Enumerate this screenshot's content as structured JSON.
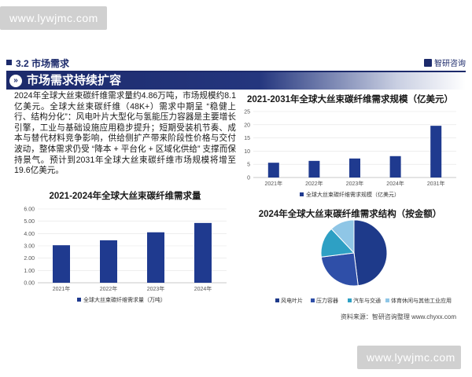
{
  "watermark": {
    "text": "www.lywjmc.com"
  },
  "section": {
    "number_title": "3.2 市场需求",
    "brand": "智研咨询"
  },
  "banner": {
    "title": "市场需求持续扩容"
  },
  "paragraph": "2024年全球大丝束碳纤维需求量约4.86万吨，市场规模约8.1亿美元。全球大丝束碳纤维（48K+）需求中期呈 “稳健上行、结构分化”：风电叶片大型化与氢能压力容器是主要增长引擎，工业与基础设施应用稳步提升；短期受装机节奏、成本与替代材料竞争影响，供给侧扩产带来阶段性价格与交付波动，整体需求仍受 “降本 + 平台化 + 区域化供给” 支撑而保持景气。预计到2031年全球大丝束碳纤维市场规模将增至19.6亿美元。",
  "source": "资料来源：智研咨询整理 www.chyxx.com",
  "colors": {
    "navy": "#1c2a6b",
    "bar": "#1f3a8f",
    "pie_wind": "#1e3a8a",
    "pie_pressure": "#2f4fa8",
    "pie_auto": "#2ea0c4",
    "pie_sports": "#8fc6e6"
  },
  "chart_data": [
    {
      "type": "bar",
      "title": "2021-2031年全球大丝束碳纤维需求规模（亿美元）",
      "categories": [
        "2021年",
        "2022年",
        "2023年",
        "2024年",
        "2031年"
      ],
      "values": [
        5.6,
        6.3,
        7.2,
        8.1,
        19.6
      ],
      "ylim": [
        0,
        25
      ],
      "yticks": [
        "0",
        "5",
        "10",
        "15",
        "20",
        "25"
      ],
      "legend": "全球大丝束碳纤维需求规模（亿美元）",
      "grid": true,
      "legend_position": "bottom"
    },
    {
      "type": "bar",
      "title": "2021-2024年全球大丝束碳纤维需求量",
      "categories": [
        "2021年",
        "2022年",
        "2023年",
        "2024年"
      ],
      "values": [
        3.05,
        3.45,
        4.1,
        4.86
      ],
      "ylim": [
        0,
        6
      ],
      "yticks": [
        "0.00",
        "1.00",
        "2.00",
        "3.00",
        "4.00",
        "5.00",
        "6.00"
      ],
      "legend": "全球大丝束碳纤维需求量（万吨）",
      "grid": true,
      "legend_position": "bottom"
    },
    {
      "type": "pie",
      "title": "2024年全球大丝束碳纤维需求结构（按金额）",
      "labels": [
        "风电叶片",
        "压力容器",
        "汽车与交通",
        "体育休闲与其他工业应用"
      ],
      "values": [
        48,
        25,
        15,
        12
      ],
      "legend_position": "bottom"
    }
  ]
}
